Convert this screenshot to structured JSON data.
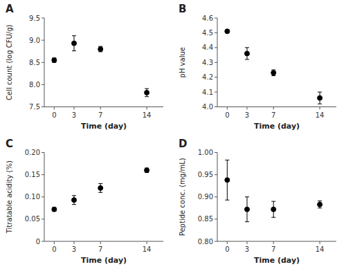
{
  "chart_data": [
    {
      "type": "scatter",
      "title": "A",
      "x": [
        0,
        3,
        7,
        14
      ],
      "values": [
        8.55,
        8.93,
        8.8,
        7.82
      ],
      "errors": [
        0.05,
        0.17,
        0.06,
        0.09
      ],
      "color": "black",
      "marker": "circle",
      "grid": false,
      "xlabel": "Time (day)",
      "ylabel": "Cell count (log CFU/g)",
      "xlim": [
        -1.5,
        16.5
      ],
      "xticks": [
        0,
        3,
        7,
        14
      ],
      "ylim": [
        7.5,
        9.5
      ],
      "yticks": [
        7.5,
        {
          "value": 8.0,
          "label": "8.0"
        },
        8.5,
        {
          "value": 9.0,
          "label": "9.0"
        },
        9.5
      ]
    },
    {
      "type": "scatter",
      "title": "B",
      "x": [
        0,
        3,
        7,
        14
      ],
      "values": [
        4.51,
        4.36,
        4.23,
        4.06
      ],
      "errors": [
        0.01,
        0.04,
        0.02,
        0.04
      ],
      "color": "black",
      "marker": "circle",
      "grid": false,
      "xlabel": "Time (day)",
      "ylabel": "pH value",
      "xlim": [
        -1.5,
        16.5
      ],
      "xticks": [
        0,
        3,
        7,
        14
      ],
      "ylim": [
        4.0,
        4.6
      ],
      "yticks": [
        {
          "value": 4.0,
          "label": "4.0"
        },
        4.1,
        4.2,
        4.3,
        4.4,
        4.5,
        4.6
      ]
    },
    {
      "type": "scatter",
      "title": "C",
      "x": [
        0,
        3,
        7,
        14
      ],
      "values": [
        0.072,
        0.093,
        0.12,
        0.16
      ],
      "errors": [
        0.004,
        0.01,
        0.01,
        0.005
      ],
      "color": "black",
      "marker": "circle",
      "grid": false,
      "xlabel": "Time (day)",
      "ylabel": "Titratable acidity (%)",
      "xlim": [
        -1.5,
        16.5
      ],
      "xticks": [
        0,
        3,
        7,
        14
      ],
      "ylim": [
        0,
        0.2
      ],
      "yticks": [
        0,
        0.05,
        {
          "value": 0.1,
          "label": "0.10"
        },
        0.15,
        {
          "value": 0.2,
          "label": "0.20"
        }
      ]
    },
    {
      "type": "scatter",
      "title": "D",
      "x": [
        0,
        3,
        7,
        14
      ],
      "values": [
        0.938,
        0.872,
        0.872,
        0.883
      ],
      "errors": [
        0.045,
        0.028,
        0.018,
        0.008
      ],
      "color": "black",
      "marker": "circle",
      "grid": false,
      "xlabel": "Time (day)",
      "ylabel": "Peptide conc. (mg/mL)",
      "xlim": [
        -1.5,
        16.5
      ],
      "xticks": [
        0,
        3,
        7,
        14
      ],
      "ylim": [
        0.8,
        1.0
      ],
      "yticks": [
        {
          "value": 0.8,
          "label": "0.80"
        },
        0.85,
        {
          "value": 0.9,
          "label": "0.90"
        },
        0.95,
        {
          "value": 1.0,
          "label": "1.00"
        }
      ]
    }
  ]
}
